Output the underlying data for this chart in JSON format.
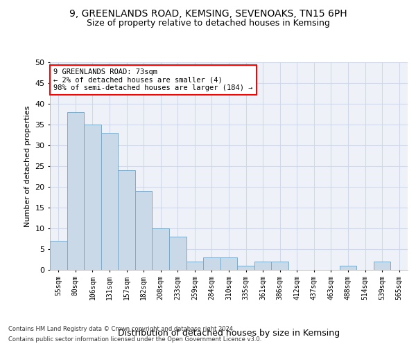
{
  "title_line1": "9, GREENLANDS ROAD, KEMSING, SEVENOAKS, TN15 6PH",
  "title_line2": "Size of property relative to detached houses in Kemsing",
  "xlabel": "Distribution of detached houses by size in Kemsing",
  "ylabel": "Number of detached properties",
  "categories": [
    "55sqm",
    "80sqm",
    "106sqm",
    "131sqm",
    "157sqm",
    "182sqm",
    "208sqm",
    "233sqm",
    "259sqm",
    "284sqm",
    "310sqm",
    "335sqm",
    "361sqm",
    "386sqm",
    "412sqm",
    "437sqm",
    "463sqm",
    "488sqm",
    "514sqm",
    "539sqm",
    "565sqm"
  ],
  "values": [
    7,
    38,
    35,
    33,
    24,
    19,
    10,
    8,
    2,
    3,
    3,
    1,
    2,
    2,
    0,
    0,
    0,
    1,
    0,
    2,
    0
  ],
  "bar_color": "#c9d9e8",
  "bar_edge_color": "#7aaac8",
  "annotation_text": "9 GREENLANDS ROAD: 73sqm\n← 2% of detached houses are smaller (4)\n98% of semi-detached houses are larger (184) →",
  "annotation_box_color": "white",
  "annotation_box_edgecolor": "red",
  "footnote1": "Contains HM Land Registry data © Crown copyright and database right 2024.",
  "footnote2": "Contains public sector information licensed under the Open Government Licence v3.0.",
  "ylim": [
    0,
    50
  ],
  "yticks": [
    0,
    5,
    10,
    15,
    20,
    25,
    30,
    35,
    40,
    45,
    50
  ],
  "grid_color": "#d0d8e8",
  "bg_color": "#eef2f8",
  "title_fontsize": 10,
  "subtitle_fontsize": 9
}
